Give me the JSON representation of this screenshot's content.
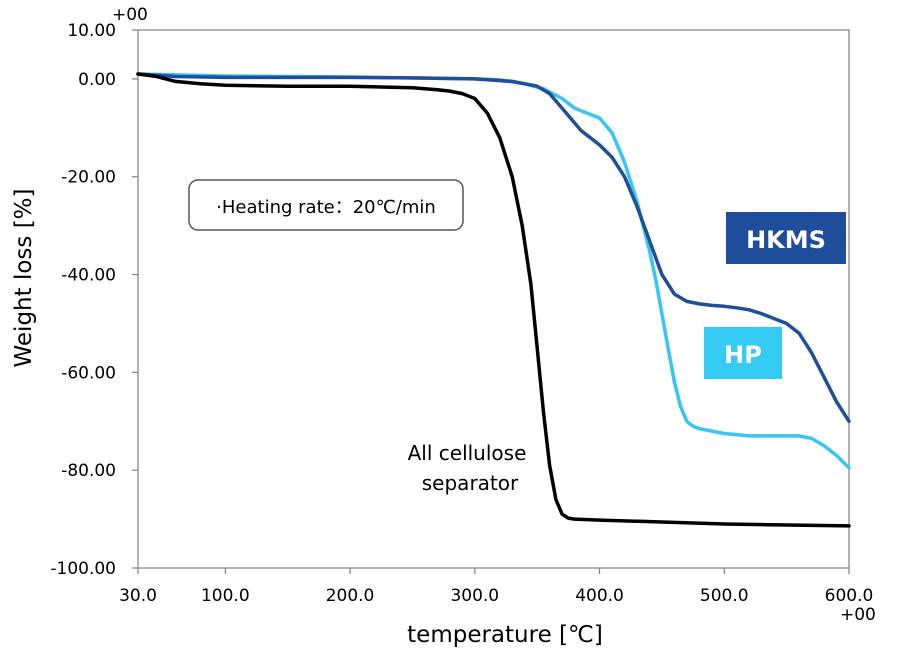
{
  "chart_data": {
    "type": "line",
    "xlabel": "temperature [℃]",
    "ylabel": "Weight loss [%]",
    "xlim": [
      30,
      600
    ],
    "ylim": [
      -100,
      10
    ],
    "x_ticks": [
      30,
      100,
      200,
      300,
      400,
      500,
      600
    ],
    "x_tick_labels": [
      "30.0",
      "100.0",
      "200.0",
      "300.0",
      "400.0",
      "500.0",
      "600.0"
    ],
    "y_ticks": [
      10,
      0,
      -20,
      -40,
      -60,
      -80,
      -100
    ],
    "y_tick_labels": [
      "10.00",
      "0.00",
      "-20.00",
      "-40.00",
      "-60.00",
      "-80.00",
      "-100.00"
    ],
    "axis_exponent_label": "+00",
    "grid": false,
    "legend_box": "·Heating rate：20℃/min",
    "series": [
      {
        "name": "HKMS",
        "color": "#1f4e9a",
        "x": [
          30,
          60,
          100,
          150,
          200,
          250,
          300,
          330,
          350,
          360,
          370,
          380,
          385,
          390,
          400,
          410,
          420,
          430,
          440,
          450,
          460,
          470,
          480,
          490,
          500,
          510,
          520,
          530,
          540,
          550,
          560,
          570,
          580,
          590,
          600
        ],
        "y": [
          1,
          0.5,
          0.3,
          0.3,
          0.3,
          0.2,
          0,
          -0.5,
          -1.5,
          -3,
          -6,
          -9,
          -10.5,
          -11.5,
          -13.5,
          -16,
          -20,
          -26,
          -33,
          -40,
          -44,
          -45.5,
          -46,
          -46.3,
          -46.5,
          -46.8,
          -47.2,
          -48,
          -49,
          -50,
          -52,
          -56,
          -61,
          -66,
          -70
        ]
      },
      {
        "name": "HP",
        "color": "#38c4f4",
        "x": [
          30,
          100,
          200,
          300,
          320,
          340,
          355,
          370,
          380,
          390,
          400,
          410,
          420,
          430,
          440,
          445,
          450,
          455,
          460,
          465,
          470,
          475,
          480,
          490,
          500,
          520,
          540,
          560,
          570,
          580,
          590,
          600
        ],
        "y": [
          1,
          0.6,
          0.4,
          0,
          -0.2,
          -1,
          -2,
          -4,
          -6,
          -7,
          -8,
          -11,
          -17,
          -25,
          -35,
          -41,
          -48,
          -55,
          -62,
          -67,
          -70,
          -71,
          -71.5,
          -72,
          -72.5,
          -73,
          -73,
          -73,
          -73.5,
          -75,
          -77,
          -79.5
        ]
      },
      {
        "name": "All cellulose separator",
        "color": "#000000",
        "x": [
          30,
          45,
          60,
          80,
          100,
          150,
          200,
          250,
          270,
          280,
          290,
          300,
          310,
          320,
          330,
          338,
          345,
          350,
          355,
          360,
          365,
          370,
          375,
          380,
          400,
          450,
          500,
          550,
          600
        ],
        "y": [
          1,
          0.5,
          -0.5,
          -1,
          -1.3,
          -1.5,
          -1.5,
          -1.8,
          -2.2,
          -2.5,
          -3,
          -4,
          -7,
          -12,
          -20,
          -30,
          -42,
          -55,
          -68,
          -79,
          -86,
          -89,
          -89.8,
          -90,
          -90.2,
          -90.6,
          -91,
          -91.2,
          -91.4
        ]
      }
    ],
    "annotations": {
      "hkms": "HKMS",
      "hp": "HP",
      "cellulose_line1": "All cellulose",
      "cellulose_line2": "separator"
    },
    "annotation_colors": {
      "hkms_bg": "#1e4d9b",
      "hp_bg": "#35cbf5",
      "text": "#ffffff"
    }
  }
}
